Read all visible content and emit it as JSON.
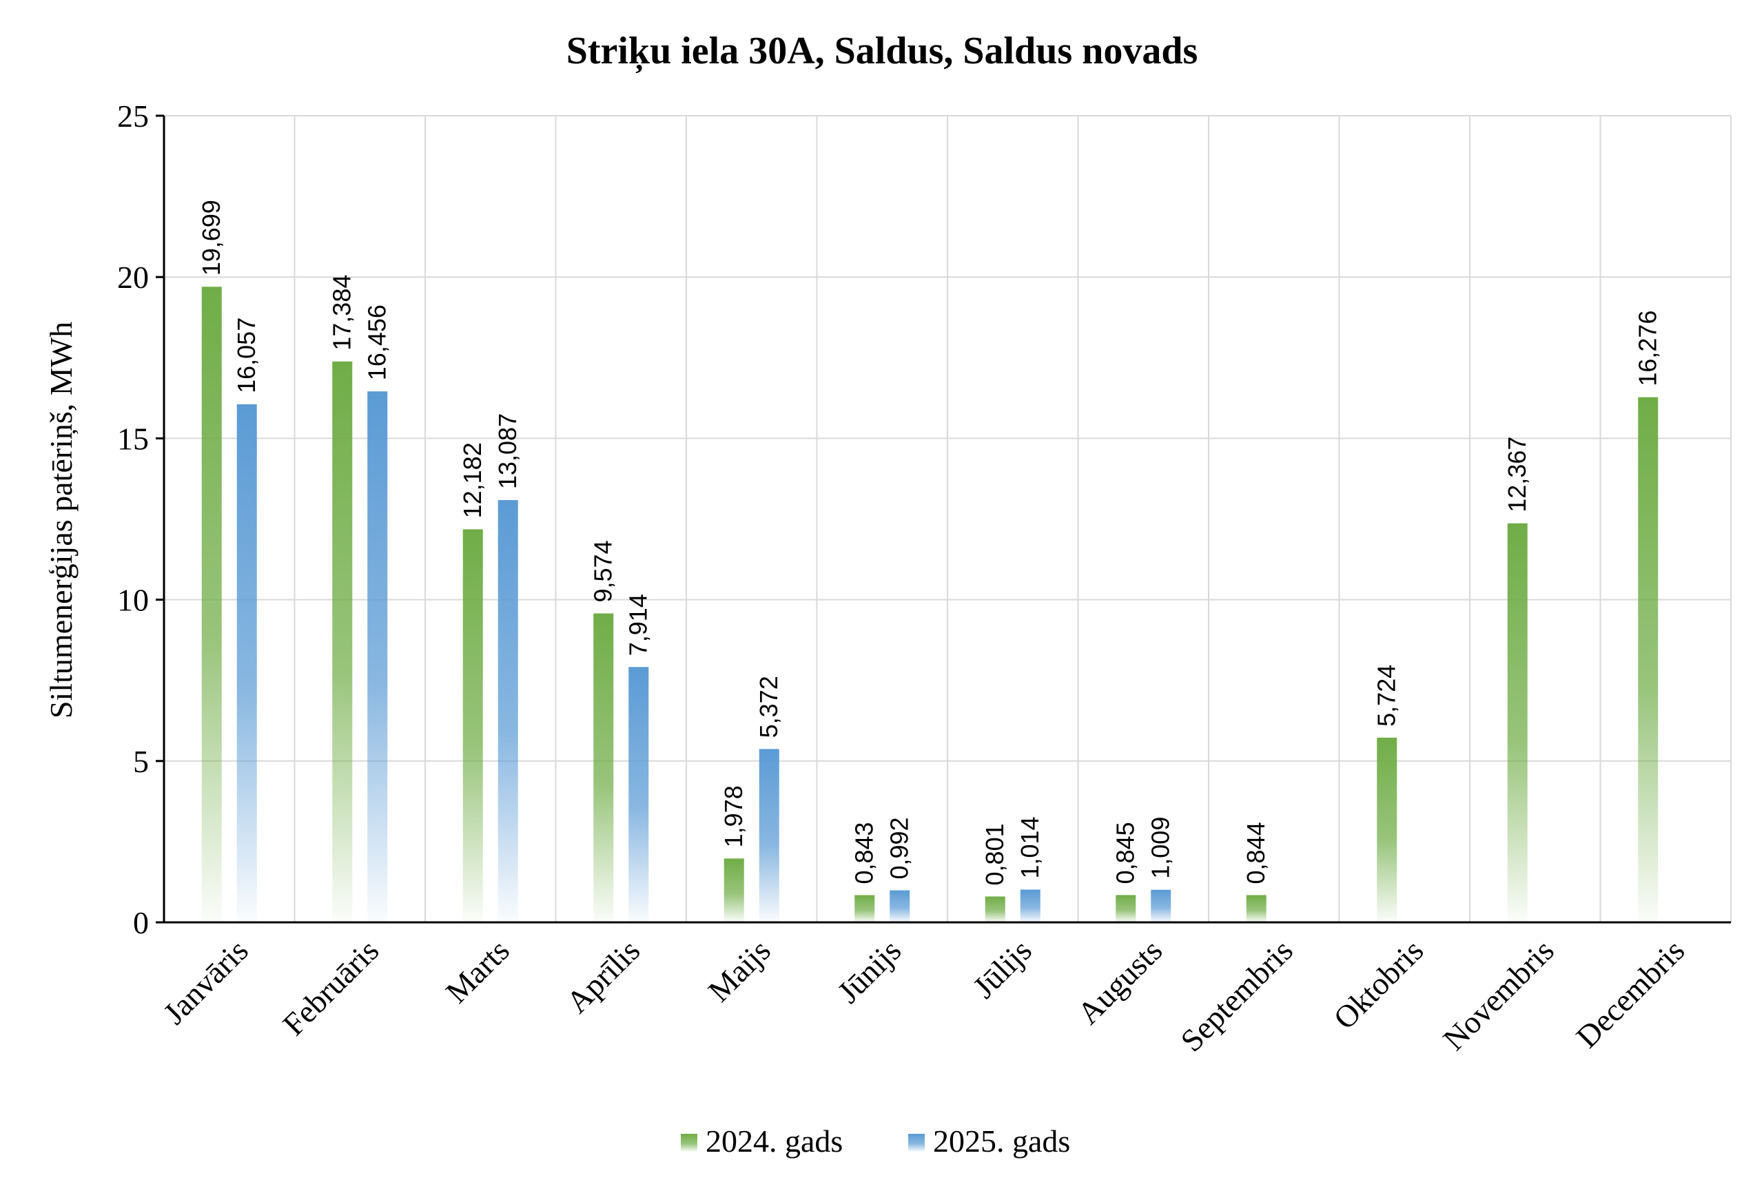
{
  "chart_data": {
    "type": "bar",
    "title": "Striķu iela 30A, Saldus, Saldus novads",
    "ylabel": "Siltumenerģijas patēriņš, MWh",
    "xlabel": "",
    "ylim": [
      0,
      25
    ],
    "yticks": [
      "0",
      "5",
      "10",
      "15",
      "20",
      "25"
    ],
    "grid": true,
    "legend_position": "bottom",
    "categories": [
      "Janvāris",
      "Februāris",
      "Marts",
      "Aprīlis",
      "Maijs",
      "Jūnijs",
      "Jūlijs",
      "Augusts",
      "Septembris",
      "Oktobris",
      "Novembris",
      "Decembris"
    ],
    "series": [
      {
        "name": "2024. gads",
        "color": "#70ad47",
        "values": [
          19.699,
          17.384,
          12.182,
          9.574,
          1.978,
          0.843,
          0.801,
          0.845,
          0.844,
          5.724,
          12.367,
          16.276
        ],
        "labels": [
          "19,699",
          "17,384",
          "12,182",
          "9,574",
          "1,978",
          "0,843",
          "0,801",
          "0,845",
          "0,844",
          "5,724",
          "12,367",
          "16,276"
        ]
      },
      {
        "name": "2025. gads",
        "color": "#5b9bd5",
        "values": [
          16.057,
          16.456,
          13.087,
          7.914,
          5.372,
          0.992,
          1.014,
          1.009,
          null,
          null,
          null,
          null
        ],
        "labels": [
          "16,057",
          "16,456",
          "13,087",
          "7,914",
          "5,372",
          "0,992",
          "1,014",
          "1,009",
          null,
          null,
          null,
          null
        ]
      }
    ]
  }
}
